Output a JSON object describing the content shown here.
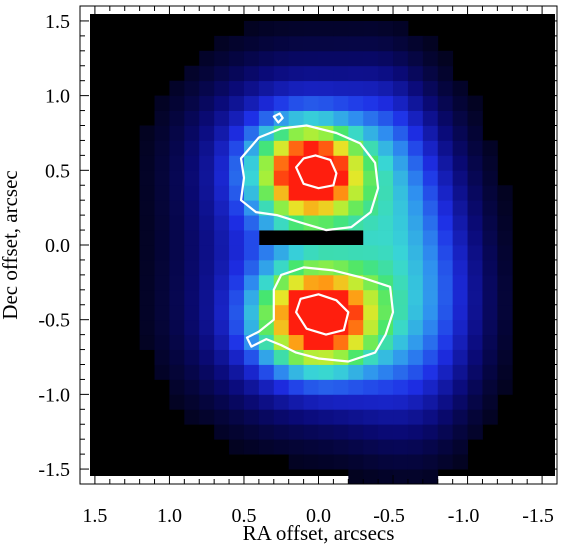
{
  "chart_data": {
    "type": "heatmap",
    "title": "",
    "xlabel": "RA offset, arcsecs",
    "ylabel": "Dec offset, arcsec",
    "xlim": [
      1.6,
      -1.6
    ],
    "ylim": [
      -1.6,
      1.6
    ],
    "x_axis_reversed": true,
    "grid": false,
    "colormap": [
      "#000000",
      "#0a0a78",
      "#1e2ee6",
      "#2f8ff0",
      "#38d6d6",
      "#46e66e",
      "#a0f03c",
      "#e6e628",
      "#ff9a14",
      "#ff1e0e"
    ],
    "pixel_scale_arcsec": 0.1,
    "x_ticks": [
      {
        "value": 1.5,
        "label": "1.5"
      },
      {
        "value": 1.0,
        "label": "1.0"
      },
      {
        "value": 0.5,
        "label": "0.5"
      },
      {
        "value": 0.0,
        "label": "0.0"
      },
      {
        "value": -0.5,
        "label": "-0.5"
      },
      {
        "value": -1.0,
        "label": "-1.0"
      },
      {
        "value": -1.5,
        "label": "-1.5"
      }
    ],
    "y_ticks": [
      {
        "value": 1.5,
        "label": "1.5"
      },
      {
        "value": 1.0,
        "label": "1.0"
      },
      {
        "value": 0.5,
        "label": "0.5"
      },
      {
        "value": 0.0,
        "label": "0.0"
      },
      {
        "value": -0.5,
        "label": "-0.5"
      },
      {
        "value": -1.0,
        "label": "-1.0"
      },
      {
        "value": -1.5,
        "label": "-1.5"
      }
    ],
    "sources": [
      {
        "ra": 0.05,
        "dec": 0.48,
        "peak": 1.0,
        "sigma_ra": 0.22,
        "sigma_dec": 0.2
      },
      {
        "ra": 0.0,
        "dec": -0.48,
        "peak": 1.0,
        "sigma_ra": 0.24,
        "sigma_dec": 0.21
      }
    ],
    "diffuse_emission": [
      {
        "ra": 0.1,
        "dec": 0.55,
        "peak": 0.3,
        "sigma_ra": 0.5,
        "sigma_dec": 0.45
      },
      {
        "ra": 0.0,
        "dec": -0.5,
        "peak": 0.3,
        "sigma_ra": 0.55,
        "sigma_dec": 0.45
      },
      {
        "ra": -0.65,
        "dec": -0.25,
        "peak": 0.22,
        "sigma_ra": 0.3,
        "sigma_dec": 0.65
      },
      {
        "ra": -0.45,
        "dec": 0.4,
        "peak": 0.12,
        "sigma_ra": 0.2,
        "sigma_dec": 0.5
      }
    ],
    "dark_gap": {
      "ra": [
        0.35,
        -0.35
      ],
      "dec": [
        0.0,
        0.12
      ]
    },
    "contours": [
      {
        "name": "upper-outer",
        "points": [
          [
            0.52,
            0.58
          ],
          [
            0.4,
            0.72
          ],
          [
            0.25,
            0.78
          ],
          [
            0.08,
            0.8
          ],
          [
            -0.12,
            0.75
          ],
          [
            -0.28,
            0.68
          ],
          [
            -0.38,
            0.55
          ],
          [
            -0.4,
            0.38
          ],
          [
            -0.35,
            0.22
          ],
          [
            -0.22,
            0.12
          ],
          [
            -0.05,
            0.1
          ],
          [
            0.12,
            0.15
          ],
          [
            0.28,
            0.2
          ],
          [
            0.42,
            0.22
          ],
          [
            0.52,
            0.3
          ],
          [
            0.5,
            0.45
          ]
        ]
      },
      {
        "name": "upper-inner",
        "points": [
          [
            0.15,
            0.52
          ],
          [
            0.1,
            0.58
          ],
          [
            0.02,
            0.6
          ],
          [
            -0.08,
            0.57
          ],
          [
            -0.12,
            0.48
          ],
          [
            -0.1,
            0.4
          ],
          [
            0.0,
            0.38
          ],
          [
            0.1,
            0.41
          ]
        ]
      },
      {
        "name": "upper-spot",
        "points": [
          [
            0.27,
            0.82
          ],
          [
            0.24,
            0.85
          ],
          [
            0.26,
            0.88
          ],
          [
            0.3,
            0.86
          ]
        ]
      },
      {
        "name": "lower-outer",
        "points": [
          [
            0.3,
            -0.3
          ],
          [
            0.25,
            -0.2
          ],
          [
            0.1,
            -0.15
          ],
          [
            -0.1,
            -0.17
          ],
          [
            -0.3,
            -0.22
          ],
          [
            -0.48,
            -0.28
          ],
          [
            -0.5,
            -0.45
          ],
          [
            -0.45,
            -0.6
          ],
          [
            -0.38,
            -0.72
          ],
          [
            -0.2,
            -0.78
          ],
          [
            0.0,
            -0.76
          ],
          [
            0.15,
            -0.72
          ],
          [
            0.25,
            -0.67
          ],
          [
            0.35,
            -0.63
          ],
          [
            0.45,
            -0.68
          ],
          [
            0.48,
            -0.62
          ],
          [
            0.4,
            -0.58
          ],
          [
            0.3,
            -0.5
          ]
        ]
      },
      {
        "name": "lower-inner",
        "points": [
          [
            0.15,
            -0.45
          ],
          [
            0.12,
            -0.36
          ],
          [
            0.0,
            -0.33
          ],
          [
            -0.12,
            -0.37
          ],
          [
            -0.2,
            -0.45
          ],
          [
            -0.17,
            -0.57
          ],
          [
            -0.05,
            -0.6
          ],
          [
            0.08,
            -0.56
          ]
        ]
      }
    ]
  }
}
